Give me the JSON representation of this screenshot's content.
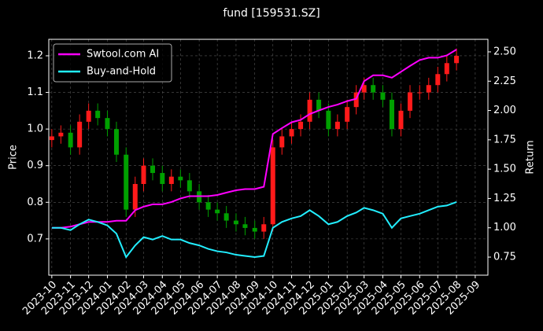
{
  "chart_data": {
    "type": "candlestick-with-returns",
    "title": "fund [159531.SZ]",
    "ylabel": "Price",
    "y2label": "Return",
    "x": [
      "2023-10-01",
      "2023-10-16",
      "2023-11-01",
      "2023-11-16",
      "2023-12-01",
      "2023-12-16",
      "2024-01-01",
      "2024-01-16",
      "2024-02-01",
      "2024-02-16",
      "2024-03-01",
      "2024-03-16",
      "2024-04-01",
      "2024-04-16",
      "2024-05-01",
      "2024-05-16",
      "2024-06-01",
      "2024-06-16",
      "2024-07-01",
      "2024-07-16",
      "2024-08-01",
      "2024-08-16",
      "2024-09-01",
      "2024-09-16",
      "2024-10-01",
      "2024-10-16",
      "2024-11-01",
      "2024-11-16",
      "2024-12-01",
      "2024-12-16",
      "2025-01-01",
      "2025-01-16",
      "2025-02-01",
      "2025-02-16",
      "2025-03-01",
      "2025-03-16",
      "2025-04-01",
      "2025-04-16",
      "2025-05-01",
      "2025-05-16",
      "2025-06-01",
      "2025-06-16",
      "2025-07-01",
      "2025-07-16",
      "2025-08-01"
    ],
    "open": [
      0.97,
      0.98,
      0.99,
      0.95,
      1.02,
      1.05,
      1.03,
      1.0,
      0.93,
      0.78,
      0.85,
      0.9,
      0.88,
      0.85,
      0.87,
      0.86,
      0.83,
      0.8,
      0.78,
      0.77,
      0.75,
      0.74,
      0.73,
      0.72,
      0.74,
      0.95,
      0.98,
      1.0,
      1.02,
      1.08,
      1.05,
      1.0,
      1.02,
      1.06,
      1.1,
      1.12,
      1.1,
      1.08,
      1.0,
      1.05,
      1.1,
      1.1,
      1.12,
      1.15,
      1.18
    ],
    "high": [
      1.0,
      1.01,
      1.01,
      1.04,
      1.07,
      1.07,
      1.05,
      1.02,
      0.95,
      0.87,
      0.92,
      0.92,
      0.9,
      0.89,
      0.89,
      0.88,
      0.85,
      0.82,
      0.8,
      0.79,
      0.77,
      0.76,
      0.75,
      0.76,
      0.97,
      1.0,
      1.02,
      1.04,
      1.1,
      1.1,
      1.07,
      1.04,
      1.08,
      1.12,
      1.14,
      1.14,
      1.12,
      1.1,
      1.07,
      1.12,
      1.12,
      1.14,
      1.17,
      1.2,
      1.22
    ],
    "low": [
      0.95,
      0.96,
      0.93,
      0.93,
      1.0,
      1.01,
      0.98,
      0.91,
      0.76,
      0.76,
      0.83,
      0.86,
      0.83,
      0.83,
      0.84,
      0.81,
      0.78,
      0.76,
      0.75,
      0.73,
      0.72,
      0.71,
      0.7,
      0.7,
      0.72,
      0.93,
      0.96,
      0.98,
      1.0,
      1.03,
      0.98,
      0.98,
      1.0,
      1.04,
      1.08,
      1.08,
      1.06,
      0.98,
      0.98,
      1.03,
      1.08,
      1.08,
      1.1,
      1.13,
      1.16
    ],
    "close": [
      0.98,
      0.99,
      0.95,
      1.02,
      1.05,
      1.03,
      1.0,
      0.93,
      0.78,
      0.85,
      0.9,
      0.88,
      0.85,
      0.87,
      0.86,
      0.83,
      0.8,
      0.78,
      0.77,
      0.75,
      0.74,
      0.73,
      0.72,
      0.74,
      0.95,
      0.98,
      1.0,
      1.02,
      1.08,
      1.05,
      1.0,
      1.02,
      1.06,
      1.1,
      1.12,
      1.1,
      1.08,
      1.0,
      1.05,
      1.1,
      1.1,
      1.12,
      1.15,
      1.18,
      1.2
    ],
    "up_color": "#ff1a1a",
    "down_color": "#00a000",
    "series": [
      {
        "name": "Swtool.com AI",
        "color": "#ff00ff",
        "axis": "y2",
        "values": [
          1.0,
          1.0,
          1.01,
          1.03,
          1.05,
          1.05,
          1.05,
          1.06,
          1.06,
          1.15,
          1.18,
          1.2,
          1.2,
          1.22,
          1.25,
          1.27,
          1.27,
          1.27,
          1.28,
          1.3,
          1.32,
          1.33,
          1.33,
          1.35,
          1.8,
          1.85,
          1.9,
          1.92,
          1.97,
          2.0,
          2.03,
          2.05,
          2.08,
          2.1,
          2.25,
          2.3,
          2.3,
          2.28,
          2.33,
          2.38,
          2.43,
          2.45,
          2.45,
          2.47,
          2.52
        ]
      },
      {
        "name": "Buy-and-Hold",
        "color": "#22eeff",
        "axis": "y2",
        "values": [
          1.0,
          1.0,
          0.98,
          1.03,
          1.07,
          1.05,
          1.02,
          0.95,
          0.75,
          0.85,
          0.92,
          0.9,
          0.93,
          0.9,
          0.9,
          0.87,
          0.85,
          0.82,
          0.8,
          0.79,
          0.77,
          0.76,
          0.75,
          0.76,
          1.0,
          1.05,
          1.08,
          1.1,
          1.15,
          1.1,
          1.03,
          1.05,
          1.1,
          1.13,
          1.17,
          1.15,
          1.12,
          1.0,
          1.08,
          1.1,
          1.12,
          1.15,
          1.18,
          1.19,
          1.22
        ]
      }
    ],
    "xlim": [
      "2023-09-26",
      "2025-09-22"
    ],
    "xticks": [
      {
        "value": "2023-10-01",
        "label": "2023-10"
      },
      {
        "value": "2023-11-01",
        "label": "2023-11"
      },
      {
        "value": "2023-12-01",
        "label": "2023-12"
      },
      {
        "value": "2024-01-01",
        "label": "2024-01"
      },
      {
        "value": "2024-02-01",
        "label": "2024-02"
      },
      {
        "value": "2024-03-01",
        "label": "2024-03"
      },
      {
        "value": "2024-04-01",
        "label": "2024-04"
      },
      {
        "value": "2024-05-01",
        "label": "2024-05"
      },
      {
        "value": "2024-06-01",
        "label": "2024-06"
      },
      {
        "value": "2024-07-01",
        "label": "2024-07"
      },
      {
        "value": "2024-08-01",
        "label": "2024-08"
      },
      {
        "value": "2024-09-01",
        "label": "2024-09"
      },
      {
        "value": "2024-10-01",
        "label": "2024-10"
      },
      {
        "value": "2024-11-01",
        "label": "2024-11"
      },
      {
        "value": "2024-12-01",
        "label": "2024-12"
      },
      {
        "value": "2025-01-01",
        "label": "2025-01"
      },
      {
        "value": "2025-02-01",
        "label": "2025-02"
      },
      {
        "value": "2025-03-01",
        "label": "2025-03"
      },
      {
        "value": "2025-04-01",
        "label": "2025-04"
      },
      {
        "value": "2025-05-01",
        "label": "2025-05"
      },
      {
        "value": "2025-06-01",
        "label": "2025-06"
      },
      {
        "value": "2025-07-01",
        "label": "2025-07"
      },
      {
        "value": "2025-08-01",
        "label": "2025-08"
      },
      {
        "value": "2025-09-01",
        "label": "2025-09"
      }
    ],
    "ylim": [
      0.601,
      1.245
    ],
    "yticks": [
      0.7,
      0.8,
      0.9,
      {
        "value": 1,
        "label": "1.0"
      },
      1.1,
      1.2
    ],
    "y2lim": [
      0.596,
      2.607
    ],
    "y2ticks": [
      0.75,
      {
        "value": 1,
        "label": "1.00"
      },
      {
        "value": 1.25,
        "label": "1.25"
      },
      {
        "value": 1.5,
        "label": "1.50"
      },
      {
        "value": 1.75,
        "label": "1.75"
      },
      {
        "value": 2,
        "label": "2.00"
      },
      {
        "value": 2.25,
        "label": "2.25"
      },
      {
        "value": 2.5,
        "label": "2.50"
      }
    ],
    "grid": true,
    "legend": "upper left"
  }
}
